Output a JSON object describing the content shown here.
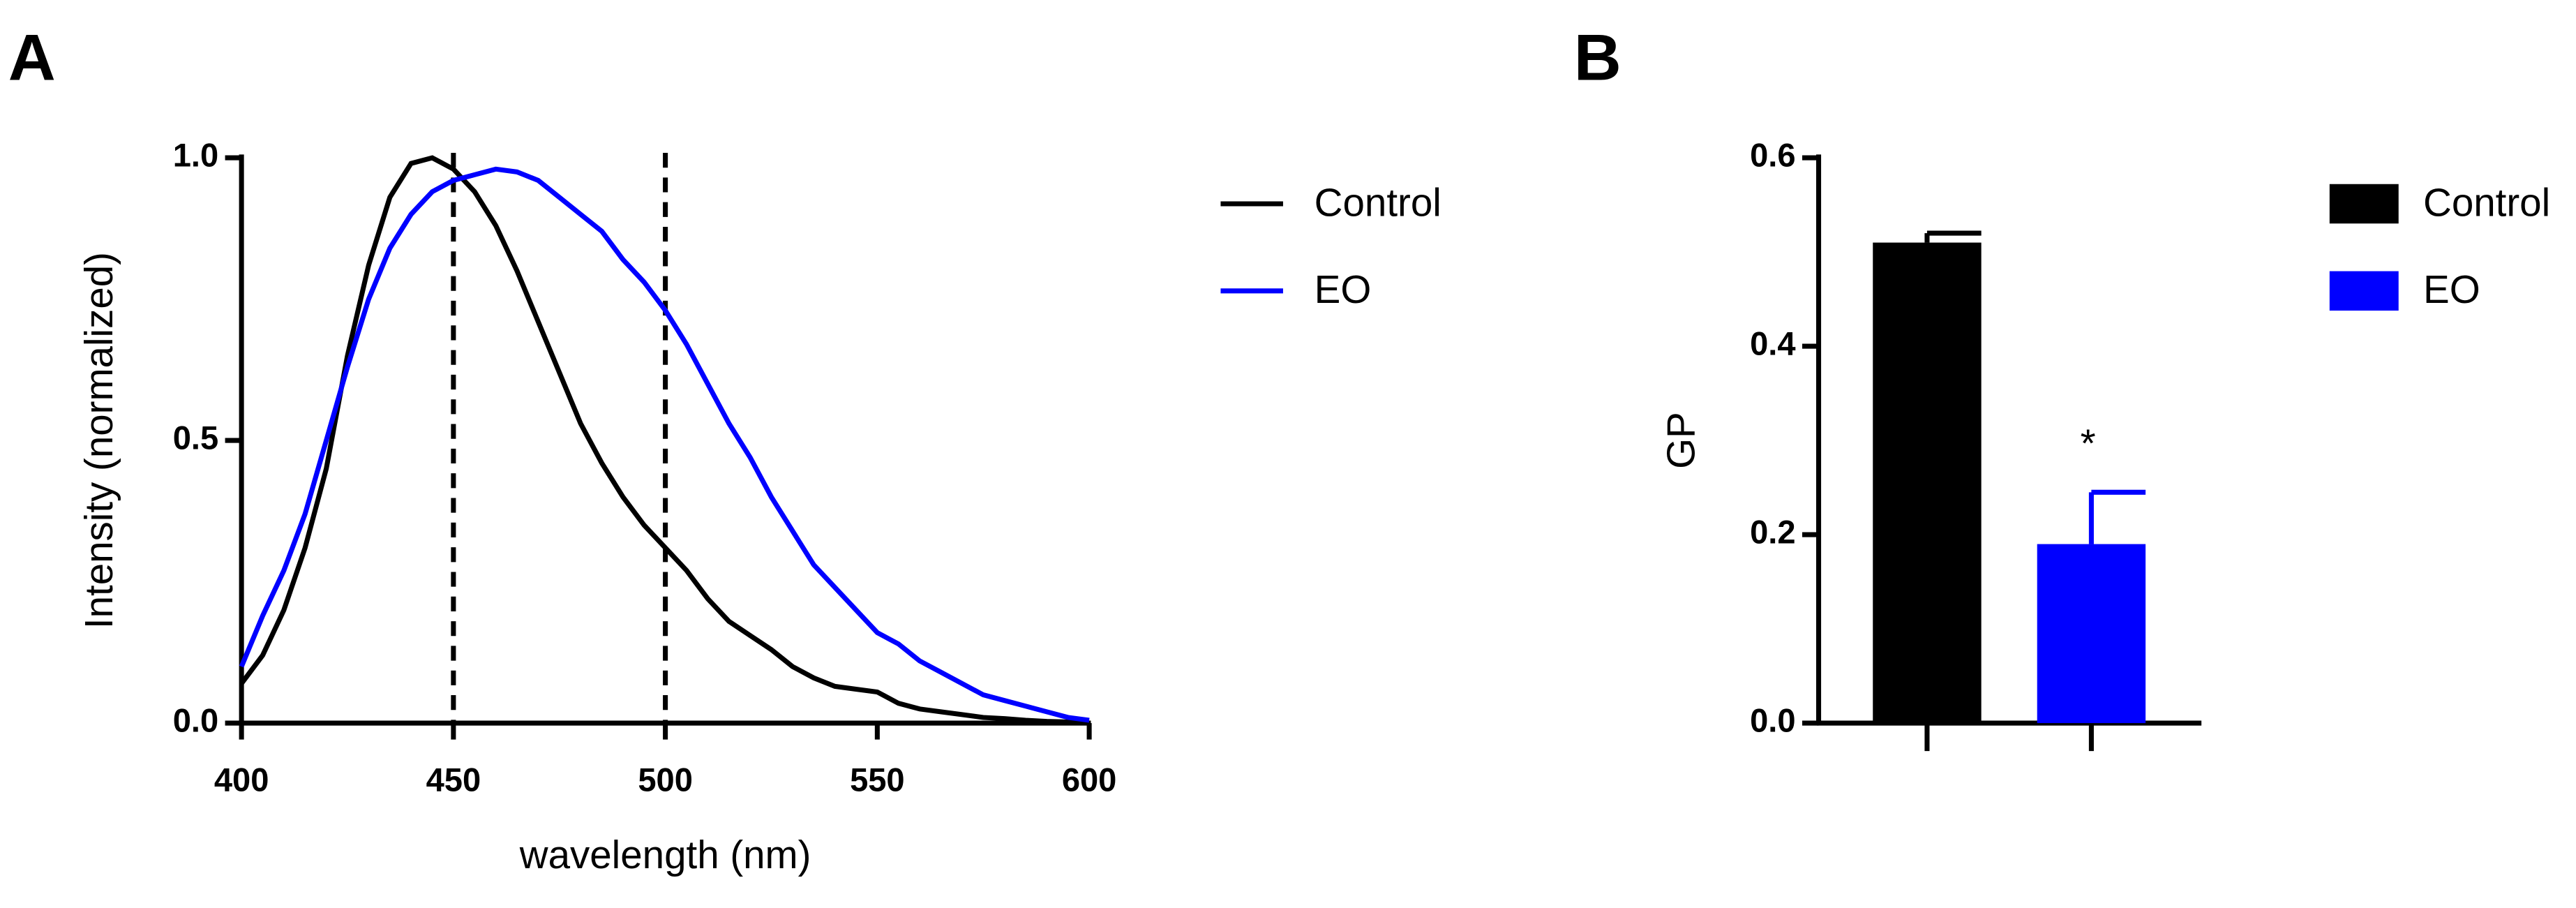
{
  "chart_data": [
    {
      "type": "line",
      "panel": "A",
      "xlabel": "wavelength (nm)",
      "ylabel": "Intensity (normalized)",
      "x": [
        400,
        405,
        410,
        415,
        420,
        425,
        430,
        435,
        440,
        445,
        450,
        455,
        460,
        465,
        470,
        475,
        480,
        485,
        490,
        495,
        500,
        505,
        510,
        515,
        520,
        525,
        530,
        535,
        540,
        545,
        550,
        555,
        560,
        565,
        570,
        575,
        580,
        585,
        590,
        595,
        600
      ],
      "series": [
        {
          "name": "Control",
          "color": "#000000",
          "values": [
            0.07,
            0.12,
            0.2,
            0.31,
            0.45,
            0.65,
            0.81,
            0.93,
            0.99,
            1.0,
            0.98,
            0.94,
            0.88,
            0.8,
            0.71,
            0.62,
            0.53,
            0.46,
            0.4,
            0.35,
            0.31,
            0.27,
            0.22,
            0.18,
            0.155,
            0.13,
            0.1,
            0.08,
            0.065,
            0.06,
            0.055,
            0.035,
            0.025,
            0.02,
            0.015,
            0.01,
            0.008,
            0.005,
            0.003,
            0.002,
            0
          ]
        },
        {
          "name": "EO",
          "color": "#0000ff",
          "values": [
            0.1,
            0.19,
            0.27,
            0.37,
            0.5,
            0.63,
            0.75,
            0.84,
            0.9,
            0.94,
            0.96,
            0.97,
            0.98,
            0.975,
            0.96,
            0.93,
            0.9,
            0.87,
            0.82,
            0.78,
            0.73,
            0.67,
            0.6,
            0.53,
            0.47,
            0.4,
            0.34,
            0.28,
            0.24,
            0.2,
            0.16,
            0.14,
            0.11,
            0.09,
            0.07,
            0.05,
            0.04,
            0.03,
            0.02,
            0.01,
            0.005
          ]
        }
      ],
      "xlim": [
        400,
        600
      ],
      "xticks": [
        400,
        450,
        500,
        550,
        600
      ],
      "ylim": [
        0,
        1
      ],
      "yticks": [
        {
          "value": 0,
          "label": "0.0"
        },
        0.5,
        {
          "value": 1,
          "label": "1.0"
        }
      ],
      "vlines": [
        450,
        500
      ]
    },
    {
      "type": "bar",
      "panel": "B",
      "ylabel": "GP",
      "categories": [
        null,
        null
      ],
      "values": [
        0.51,
        0.19
      ],
      "errors": [
        0.01,
        0.055
      ],
      "colors": [
        "#000000",
        "#0000ff"
      ],
      "legend": [
        "Control",
        "EO"
      ],
      "significance": [
        null,
        "*"
      ],
      "ylim": [
        0,
        0.6
      ],
      "yticks": [
        {
          "value": 0,
          "label": "0.0"
        },
        0.2,
        0.4,
        0.6
      ]
    }
  ]
}
